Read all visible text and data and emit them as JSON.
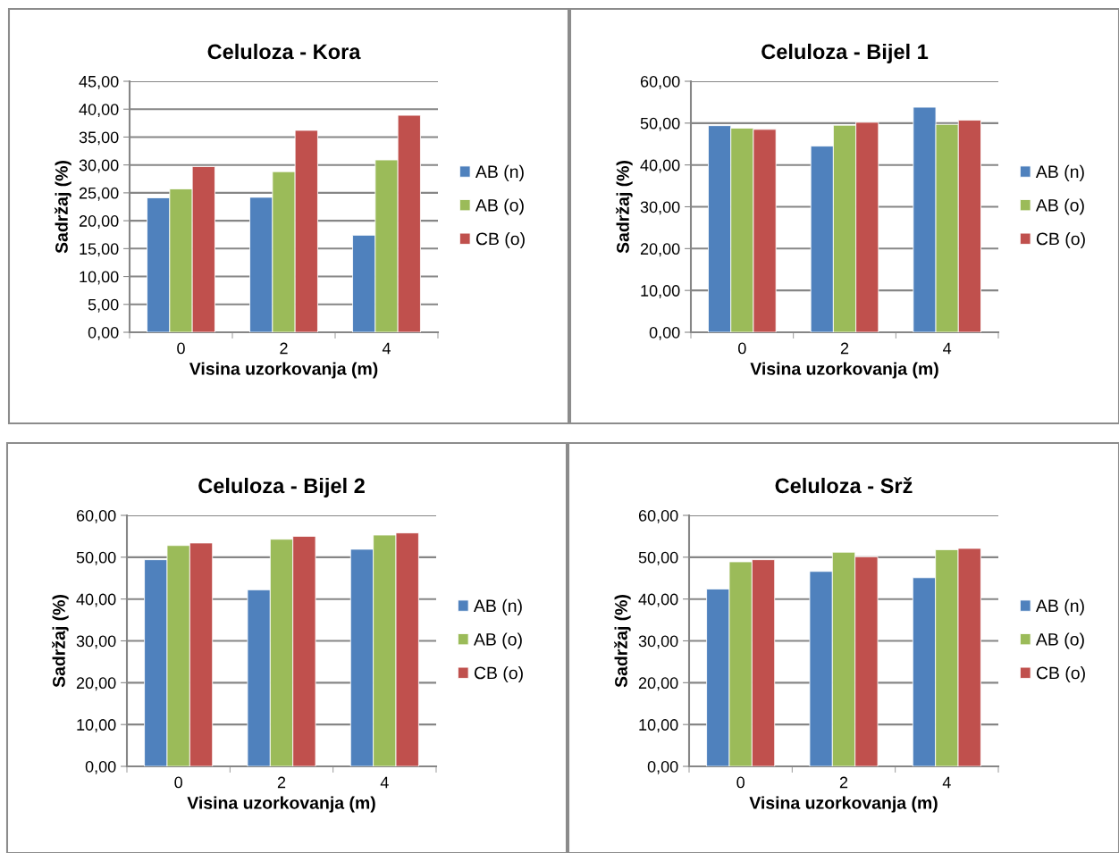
{
  "chart_data": [
    {
      "type": "bar",
      "title": "Celuloza - Kora",
      "xlabel": "Visina uzorkovanja (m)",
      "ylabel": "Sadržaj (%)",
      "categories": [
        "0",
        "2",
        "4"
      ],
      "series": [
        {
          "name": "AB (n)",
          "color": "#4f81bd",
          "values": [
            24.1,
            24.2,
            17.4
          ]
        },
        {
          "name": "AB (o)",
          "color": "#9bbb59",
          "values": [
            25.7,
            28.8,
            30.9
          ]
        },
        {
          "name": "CB (o)",
          "color": "#c0504d",
          "values": [
            29.7,
            36.2,
            38.9
          ]
        }
      ],
      "ylim": [
        0,
        45
      ],
      "yticks": [
        {
          "value": 0,
          "label": "0,00"
        },
        {
          "value": 5,
          "label": "5,00"
        },
        {
          "value": 10,
          "label": "10,00"
        },
        {
          "value": 15,
          "label": "15,00"
        },
        {
          "value": 20,
          "label": "20,00"
        },
        {
          "value": 25,
          "label": "25,00"
        },
        {
          "value": 30,
          "label": "30,00"
        },
        {
          "value": 35,
          "label": "35,00"
        },
        {
          "value": 40,
          "label": "40,00"
        },
        {
          "value": 45,
          "label": "45,00"
        }
      ],
      "grid": "y",
      "legend": "right"
    },
    {
      "type": "bar",
      "title": "Celuloza - Bijel 1",
      "xlabel": "Visina uzorkovanja (m)",
      "ylabel": "Sadržaj (%)",
      "categories": [
        "0",
        "2",
        "4"
      ],
      "series": [
        {
          "name": "AB (n)",
          "color": "#4f81bd",
          "values": [
            49.4,
            44.5,
            53.8
          ]
        },
        {
          "name": "AB (o)",
          "color": "#9bbb59",
          "values": [
            48.8,
            49.5,
            49.7
          ]
        },
        {
          "name": "CB (o)",
          "color": "#c0504d",
          "values": [
            48.5,
            50.2,
            50.7
          ]
        }
      ],
      "ylim": [
        0,
        60
      ],
      "yticks": [
        {
          "value": 0,
          "label": "0,00"
        },
        {
          "value": 10,
          "label": "10,00"
        },
        {
          "value": 20,
          "label": "20,00"
        },
        {
          "value": 30,
          "label": "30,00"
        },
        {
          "value": 40,
          "label": "40,00"
        },
        {
          "value": 50,
          "label": "50,00"
        },
        {
          "value": 60,
          "label": "60,00"
        }
      ],
      "grid": "y",
      "legend": "right"
    },
    {
      "type": "bar",
      "title": "Celuloza - Bijel 2",
      "xlabel": "Visina uzorkovanja (m)",
      "ylabel": "Sadržaj (%)",
      "categories": [
        "0",
        "2",
        "4"
      ],
      "series": [
        {
          "name": "AB (n)",
          "color": "#4f81bd",
          "values": [
            49.4,
            42.2,
            51.9
          ]
        },
        {
          "name": "AB (o)",
          "color": "#9bbb59",
          "values": [
            52.8,
            54.3,
            55.3
          ]
        },
        {
          "name": "CB (o)",
          "color": "#c0504d",
          "values": [
            53.4,
            55.0,
            55.8
          ]
        }
      ],
      "ylim": [
        0,
        60
      ],
      "yticks": [
        {
          "value": 0,
          "label": "0,00"
        },
        {
          "value": 10,
          "label": "10,00"
        },
        {
          "value": 20,
          "label": "20,00"
        },
        {
          "value": 30,
          "label": "30,00"
        },
        {
          "value": 40,
          "label": "40,00"
        },
        {
          "value": 50,
          "label": "50,00"
        },
        {
          "value": 60,
          "label": "60,00"
        }
      ],
      "grid": "y",
      "legend": "right"
    },
    {
      "type": "bar",
      "title": "Celuloza - Srž",
      "xlabel": "Visina uzorkovanja (m)",
      "ylabel": "Sadržaj (%)",
      "categories": [
        "0",
        "2",
        "4"
      ],
      "series": [
        {
          "name": "AB (n)",
          "color": "#4f81bd",
          "values": [
            42.4,
            46.6,
            45.1
          ]
        },
        {
          "name": "AB (o)",
          "color": "#9bbb59",
          "values": [
            48.9,
            51.2,
            51.8
          ]
        },
        {
          "name": "CB (o)",
          "color": "#c0504d",
          "values": [
            49.4,
            50.1,
            52.1
          ]
        }
      ],
      "ylim": [
        0,
        60
      ],
      "yticks": [
        {
          "value": 0,
          "label": "0,00"
        },
        {
          "value": 10,
          "label": "10,00"
        },
        {
          "value": 20,
          "label": "20,00"
        },
        {
          "value": 30,
          "label": "30,00"
        },
        {
          "value": 40,
          "label": "40,00"
        },
        {
          "value": 50,
          "label": "50,00"
        },
        {
          "value": 60,
          "label": "60,00"
        }
      ],
      "grid": "y",
      "legend": "right"
    }
  ]
}
